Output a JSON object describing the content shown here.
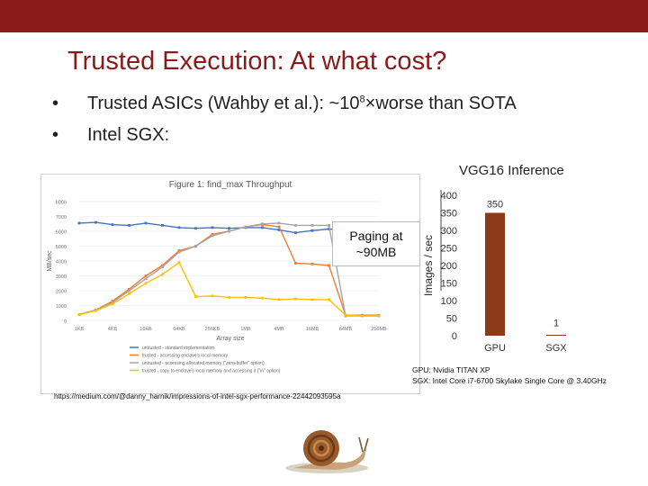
{
  "slide": {
    "title": "Trusted Execution: At what cost?",
    "bullets": [
      {
        "marker": "•",
        "text_before": "Trusted ASICs (Wahby et al.): ~10",
        "superscript": "8",
        "text_after": "×worse than SOTA"
      },
      {
        "marker": "•",
        "text": "Intel SGX:"
      }
    ],
    "callout": {
      "line1": "Paging at",
      "line2": "~90MB"
    },
    "source_url": "https://medium.com/@danny_harnik/impressions-of-intel-sgx-performance-22442093595a",
    "gpu_note_line1": "GPU: Nvidia TITAN XP",
    "gpu_note_line2": "SGX: Intel Core i7-6700 Skylake Single Core @ 3.40GHz",
    "colors": {
      "topbar": "#8b1a1a",
      "title": "#8b1a1a",
      "bar": "#8b3a1a"
    }
  },
  "screenshot": {
    "title": "Figure 1: find_max Throughput",
    "y_label": "MB/sec",
    "x_label": "Array size",
    "y_ticks": [
      "8000",
      "7000",
      "6000",
      "5000",
      "4000",
      "3000",
      "2000",
      "1000",
      "0"
    ],
    "x_ticks": [
      "1KB",
      "4KB",
      "16KB",
      "64KB",
      "256KB",
      "1MB",
      "4MB",
      "16MB",
      "64MB",
      "256MB"
    ],
    "legend": [
      {
        "label": "untrusted - standard implementation",
        "color": "#4472c4"
      },
      {
        "label": "trusted - accessing enclave's local memory",
        "color": "#ed7d31"
      },
      {
        "label": "untrusted - accessing allocated memory (\"zero-buffer\" option)",
        "color": "#a5a5a5"
      },
      {
        "label": "trusted - copy to enclave's local memory and accessing it (\"in\" option)",
        "color": "#ffc000"
      }
    ]
  },
  "chart_data": [
    {
      "type": "line",
      "title": "Figure 1: find_max Throughput",
      "xlabel": "Array size",
      "ylabel": "MB/sec",
      "ylim": [
        0,
        8000
      ],
      "x": [
        "1KB",
        "2KB",
        "4KB",
        "8KB",
        "16KB",
        "32KB",
        "64KB",
        "128KB",
        "256KB",
        "512KB",
        "1MB",
        "2MB",
        "4MB",
        "8MB",
        "16MB",
        "32MB",
        "64MB",
        "128MB",
        "256MB"
      ],
      "series": [
        {
          "name": "untrusted - standard implementation",
          "values": [
            6550,
            6600,
            6450,
            6400,
            6550,
            6400,
            6250,
            6200,
            6250,
            6200,
            6250,
            6250,
            6100,
            5900,
            6050,
            6150,
            6100,
            6150,
            6150
          ]
        },
        {
          "name": "trusted - accessing enclave's local memory",
          "values": [
            400,
            700,
            1300,
            2100,
            3000,
            3700,
            4700,
            5000,
            5800,
            6000,
            6300,
            6450,
            6300,
            3850,
            3800,
            3700,
            350,
            350,
            350
          ]
        },
        {
          "name": "untrusted - accessing allocated memory (\"zero-buffer\" option)",
          "values": [
            400,
            700,
            1200,
            2000,
            2800,
            3600,
            4600,
            5000,
            5700,
            6000,
            6300,
            6500,
            6550,
            6400,
            6400,
            6400,
            300,
            300,
            300
          ]
        },
        {
          "name": "trusted - copy to enclave's local memory and accessing it (\"in\" option)",
          "values": [
            400,
            650,
            1100,
            1800,
            2500,
            3100,
            3900,
            1600,
            1650,
            1550,
            1550,
            1500,
            1400,
            1450,
            1400,
            1400,
            350,
            300,
            300
          ]
        }
      ]
    },
    {
      "type": "bar",
      "title": "VGG16 Inference",
      "ylabel": "Images / sec",
      "categories": [
        "GPU",
        "SGX"
      ],
      "values": [
        350,
        1
      ],
      "data_labels": [
        "350",
        "1"
      ],
      "y_ticks": [
        "400",
        "350",
        "300",
        "250",
        "200",
        "150",
        "100",
        "50",
        "0"
      ],
      "ylim": [
        0,
        400
      ]
    }
  ]
}
